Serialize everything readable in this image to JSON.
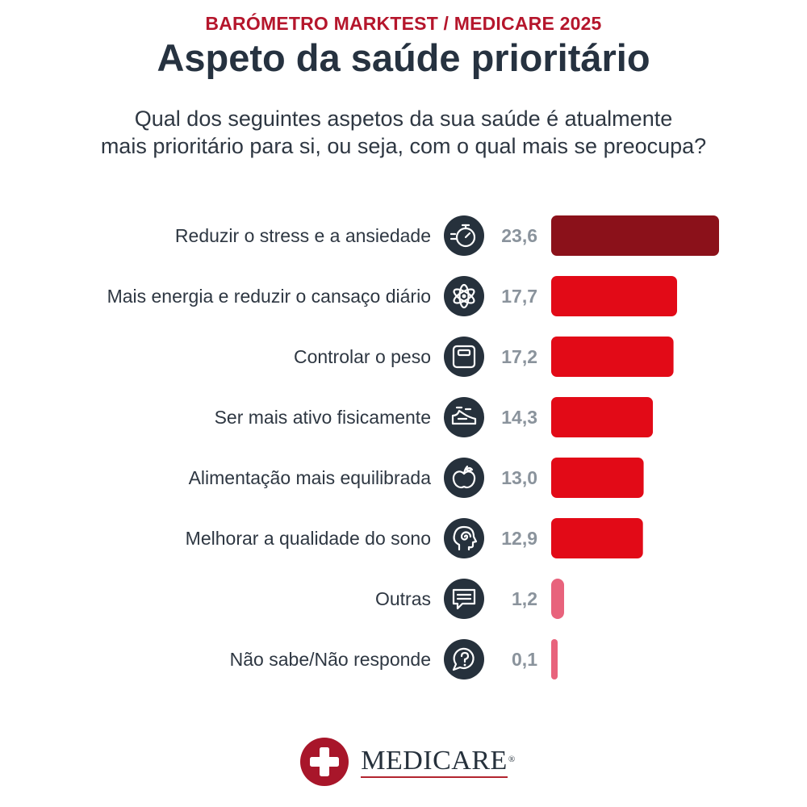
{
  "header": {
    "kicker": "BARÓMETRO MARKTEST / MEDICARE 2025",
    "title": "Aspeto da saúde prioritário",
    "question_lines": [
      "Qual dos seguintes aspetos da sua saúde é atualmente",
      "mais prioritário para si, ou seja, com o qual mais se preocupa?"
    ]
  },
  "colors": {
    "kicker": "#b5162c",
    "top_bar": "#8b111a",
    "bar": "#e20a17",
    "small_bar": "#e8637c",
    "icon_bg": "#26313c"
  },
  "chart_data": {
    "type": "bar",
    "orientation": "horizontal",
    "title": "Aspeto da saúde prioritário",
    "categories": [
      "Reduzir o stress e a ansiedade",
      "Mais energia e reduzir o cansaço diário",
      "Controlar o peso",
      "Ser mais ativo fisicamente",
      "Alimentação mais equilibrada",
      "Melhorar a qualidade do sono",
      "Outras",
      "Não sabe/Não responde"
    ],
    "values": [
      23.6,
      17.7,
      17.2,
      14.3,
      13.0,
      12.9,
      1.2,
      0.1
    ],
    "value_labels": [
      "23,6",
      "17,7",
      "17,2",
      "14,3",
      "13,0",
      "12,9",
      "1,2",
      "0,1"
    ],
    "icons": [
      "stopwatch-icon",
      "atom-energy-icon",
      "scale-icon",
      "running-shoe-icon",
      "apple-icon",
      "head-spiral-icon",
      "speech-bubble-icon",
      "question-bubble-icon"
    ],
    "grid": false,
    "legend": "none"
  },
  "logo": {
    "text": "MEDICARE",
    "reg": "®"
  }
}
